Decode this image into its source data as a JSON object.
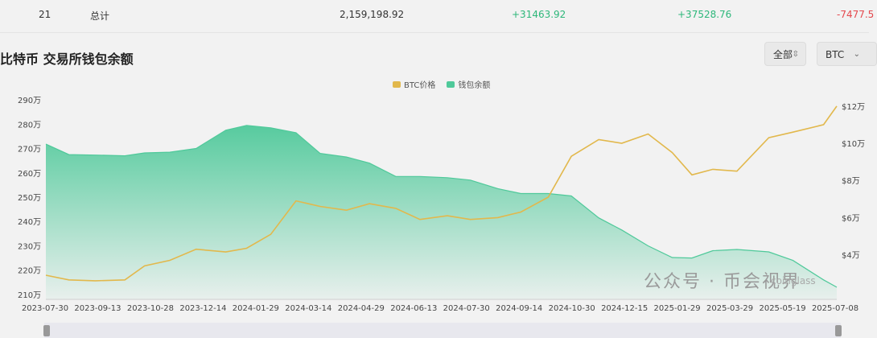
{
  "summary_row": {
    "index": "21",
    "label": "总计",
    "balance": "2,159,198.92",
    "change_1": "+31463.92",
    "change_2": "+37528.76",
    "change_3": "-7477.5"
  },
  "title": "比特币 交易所钱包余额",
  "controls": {
    "range_label": "全部",
    "coin_label": "BTC"
  },
  "watermark": "公众号 · 币会视界",
  "brand": "coinglass",
  "colors": {
    "btc_price": "#e2b84c",
    "balance": "#4fc99a"
  },
  "chart_data": {
    "type": "area",
    "legend": [
      "BTC价格",
      "钱包余额"
    ],
    "legend_position": "top-center",
    "x_tick_labels": [
      "2023-07-30",
      "2023-09-13",
      "2023-10-28",
      "2023-12-14",
      "2024-01-29",
      "2024-03-14",
      "2024-04-29",
      "2024-06-13",
      "2024-07-30",
      "2024-09-14",
      "2024-10-30",
      "2024-12-15",
      "2025-01-29",
      "2025-03-29",
      "2025-05-19",
      "2025-07-08"
    ],
    "x": [
      "2023-07-30",
      "2023-08-20",
      "2023-09-13",
      "2023-10-10",
      "2023-10-28",
      "2023-11-20",
      "2023-12-14",
      "2024-01-10",
      "2024-01-29",
      "2024-02-20",
      "2024-03-14",
      "2024-04-05",
      "2024-04-29",
      "2024-05-20",
      "2024-06-13",
      "2024-07-05",
      "2024-07-30",
      "2024-08-20",
      "2024-09-14",
      "2024-10-05",
      "2024-10-30",
      "2024-11-20",
      "2024-12-15",
      "2025-01-05",
      "2025-01-29",
      "2025-02-20",
      "2025-03-10",
      "2025-03-29",
      "2025-04-20",
      "2025-05-19",
      "2025-06-10",
      "2025-07-08",
      "2025-07-20"
    ],
    "series": [
      {
        "name": "钱包余额",
        "axis": "left",
        "values": [
          271.8,
          267.5,
          267.3,
          267.0,
          268.2,
          268.5,
          270.0,
          277.5,
          279.5,
          278.5,
          276.5,
          268.0,
          266.5,
          264.0,
          258.5,
          258.5,
          258.0,
          257.0,
          253.5,
          251.5,
          251.5,
          250.5,
          241.5,
          236.5,
          230.0,
          225.2,
          225.0,
          228.0,
          228.5,
          227.5,
          224.0,
          216.0,
          213.0
        ]
      },
      {
        "name": "BTC价格",
        "axis": "right",
        "values": [
          2.9,
          2.65,
          2.6,
          2.65,
          3.4,
          3.7,
          4.3,
          4.15,
          4.35,
          5.1,
          6.9,
          6.6,
          6.4,
          6.75,
          6.5,
          5.9,
          6.1,
          5.9,
          6.0,
          6.3,
          7.1,
          9.3,
          10.2,
          10.0,
          10.5,
          9.5,
          8.3,
          8.6,
          8.5,
          10.3,
          10.6,
          11.0,
          12.0
        ]
      }
    ],
    "y_left": {
      "ticks": [
        210,
        220,
        230,
        240,
        250,
        260,
        270,
        280,
        290
      ],
      "tick_labels": [
        "210万",
        "220万",
        "230万",
        "240万",
        "250万",
        "260万",
        "270万",
        "280万",
        "290万"
      ],
      "ylim": [
        208,
        292
      ]
    },
    "y_right": {
      "ticks": [
        4,
        6,
        8,
        10,
        12
      ],
      "tick_labels": [
        "$4万",
        "$6万",
        "$8万",
        "$10万",
        "$12万"
      ],
      "ylim": [
        1.6,
        12.6
      ]
    },
    "grid": false
  }
}
